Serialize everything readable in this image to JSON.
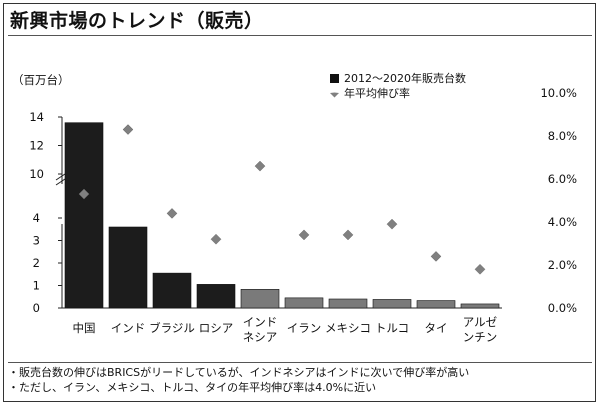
{
  "title": "新興市場のトレンド（販売）",
  "notes": [
    "・販売台数の伸びはBRICSがリードしているが、インドネシアはインドに次いで伸び率が高い",
    "・ただし、イラン、メキシコ、トルコ、タイの年平均伸び率は4.0%に近い"
  ],
  "chart_data": {
    "type": "bar",
    "unit_label": "（百万台）",
    "categories": [
      "中国",
      "インド",
      "ブラジル",
      "ロシア",
      "インド\nネシア",
      "イラン",
      "メキシコ",
      "トルコ",
      "タイ",
      "アルゼ\nンチン"
    ],
    "series": [
      {
        "name": "2012～2020年販売台数",
        "kind": "bar",
        "axis": "left",
        "values": [
          13.6,
          3.6,
          1.55,
          1.05,
          0.83,
          0.45,
          0.4,
          0.38,
          0.33,
          0.18
        ],
        "colors": [
          "#1c1c1c",
          "#1c1c1c",
          "#1c1c1c",
          "#1c1c1c",
          "#7a7a7a",
          "#7a7a7a",
          "#7a7a7a",
          "#7a7a7a",
          "#7a7a7a",
          "#7a7a7a"
        ]
      },
      {
        "name": "年平均伸び率",
        "kind": "marker",
        "axis": "right",
        "values": [
          5.3,
          8.3,
          4.4,
          3.2,
          6.6,
          3.4,
          3.4,
          3.9,
          2.4,
          1.8
        ],
        "color": "#808080"
      }
    ],
    "y_left": {
      "broken": true,
      "lower_ticks": [
        0,
        1,
        2,
        3,
        4
      ],
      "upper_ticks": [
        10,
        12,
        14
      ],
      "lower_range": [
        0,
        4
      ],
      "upper_range": [
        10,
        14
      ]
    },
    "y_right": {
      "range": [
        0,
        10
      ],
      "ticks": [
        0,
        2,
        4,
        6,
        8,
        10
      ],
      "tick_labels": [
        "0.0%",
        "2.0%",
        "4.0%",
        "6.0%",
        "8.0%",
        "10.0%"
      ]
    },
    "legend_position": "top-right",
    "grid": false
  }
}
